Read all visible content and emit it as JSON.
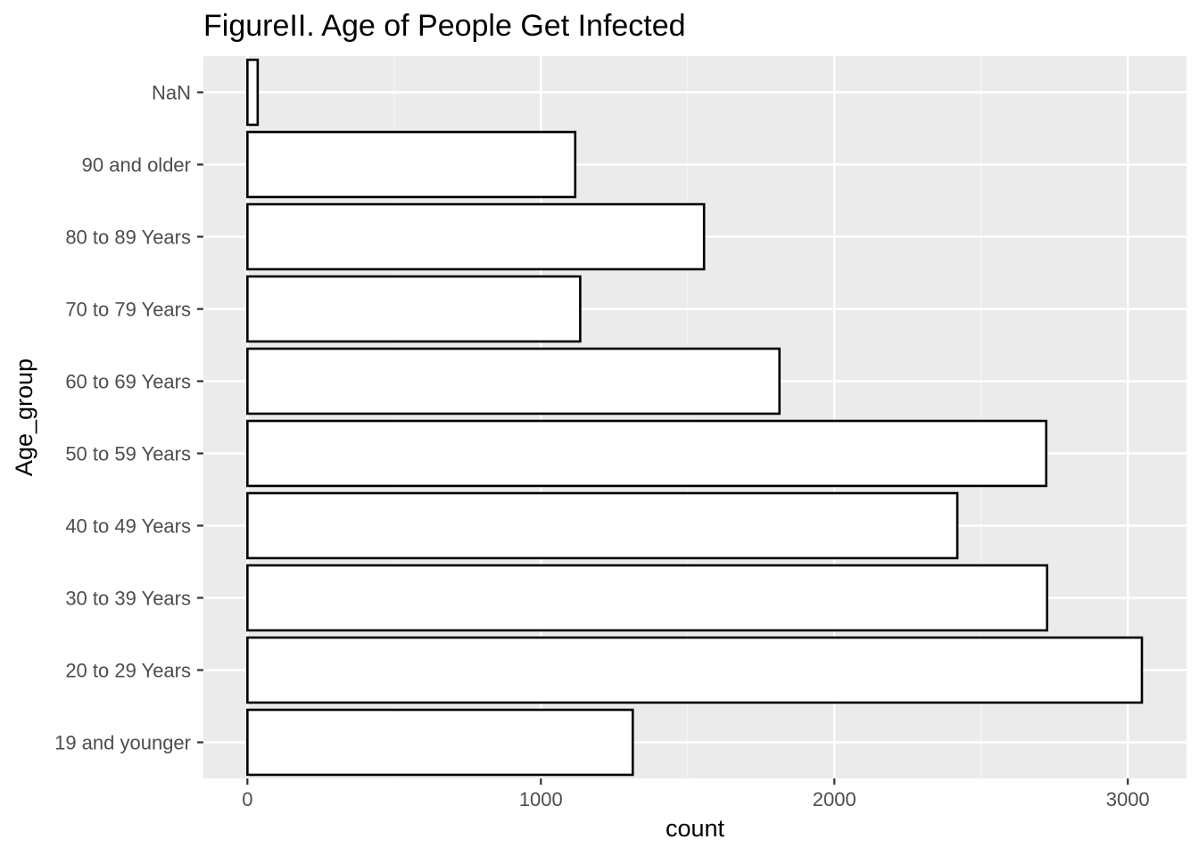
{
  "colors": {
    "panel_background": "#ebebeb",
    "grid_major": "#ffffff",
    "grid_minor": "#f5f5f5",
    "bar_fill": "#ffffff",
    "bar_outline": "#000000",
    "tick_label": "#4d4d4d",
    "axis_tick": "#333333",
    "text": "#000000"
  },
  "chart_data": {
    "type": "bar",
    "orientation": "horizontal",
    "title": "FigureII. Age of People Get Infected",
    "xlabel": "count",
    "ylabel": "Age_group",
    "categories": [
      "19 and younger",
      "20 to 29 Years",
      "30 to 39 Years",
      "40 to 49 Years",
      "50 to 59 Years",
      "60 to 69 Years",
      "70 to 79 Years",
      "80 to 89 Years",
      "90 and older",
      "NaN"
    ],
    "values": [
      1313,
      3048,
      2725,
      2419,
      2722,
      1813,
      1134,
      1556,
      1117,
      35
    ],
    "xlim": [
      -150,
      3200
    ],
    "xticks": [
      0,
      1000,
      2000,
      3000
    ],
    "xtick_labels": [
      "0",
      "1000",
      "2000",
      "3000"
    ],
    "grid": true,
    "legend": "none"
  }
}
